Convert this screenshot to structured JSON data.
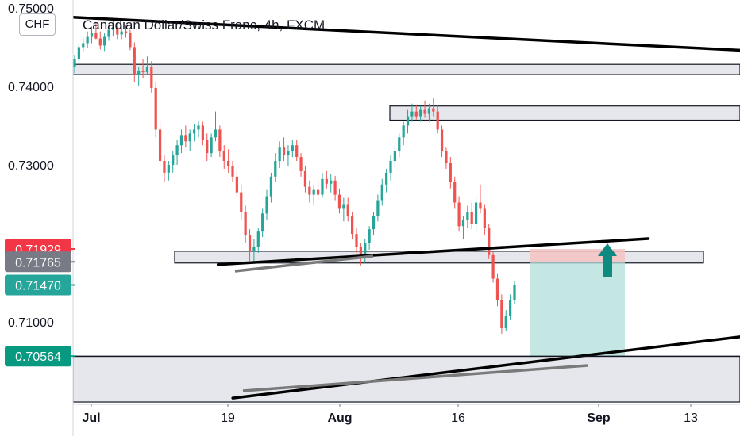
{
  "header": {
    "title": "Canadian Dollar/Swiss Franc, 4h, FXCM",
    "currency": "CHF"
  },
  "chart_data": {
    "type": "candlestick",
    "title": "Canadian Dollar/Swiss Franc, 4h, FXCM",
    "y_axis": {
      "ticks": [
        "0.75000",
        "0.74000",
        "0.73000",
        "0.71000"
      ],
      "tick_values": [
        0.75,
        0.74,
        0.73,
        0.71
      ],
      "range": [
        0.6995,
        0.751
      ]
    },
    "x_axis": {
      "ticks": [
        "Jul",
        "19",
        "Aug",
        "16",
        "Sep",
        "13"
      ]
    },
    "price_labels": [
      {
        "value": 0.71929,
        "text": "0.71929",
        "color": "#f23645"
      },
      {
        "value": 0.71765,
        "text": "0.71765",
        "color": "#787b86"
      },
      {
        "value": 0.7147,
        "text": "0.71470",
        "color": "#26a69a"
      },
      {
        "value": 0.70564,
        "text": "0.70564",
        "color": "#089981"
      }
    ],
    "zones": [
      {
        "price_top": 0.7428,
        "price_bottom": 0.7415
      },
      {
        "price_top": 0.7375,
        "price_bottom": 0.7357
      },
      {
        "price_top": 0.719,
        "price_bottom": 0.7175
      },
      {
        "price_top": 0.7056,
        "price_bottom": 0.6998
      }
    ],
    "trendlines": [
      {
        "from": [
          0,
          0.7488
        ],
        "to": [
          1,
          0.7446
        ],
        "color": "#000000"
      },
      {
        "from": [
          0.2175,
          0.7173
        ],
        "to": [
          0.8625,
          0.7206
        ],
        "color": "#000000"
      },
      {
        "from": [
          0.2395,
          0.7003
        ],
        "to": [
          1,
          0.7081
        ],
        "color": "#000000"
      }
    ],
    "position": {
      "entry": 0.71765,
      "stop": 0.71929,
      "target": 0.70564,
      "profit_color": "#b2dfdb",
      "loss_color": "#f5c2c2"
    },
    "candles": [
      [
        0.7425,
        0.744,
        0.7417,
        0.7435
      ],
      [
        0.7435,
        0.7455,
        0.743,
        0.745
      ],
      [
        0.745,
        0.7462,
        0.7444,
        0.7455
      ],
      [
        0.7455,
        0.747,
        0.7449,
        0.7463
      ],
      [
        0.7463,
        0.7476,
        0.7455,
        0.7468
      ],
      [
        0.7468,
        0.7482,
        0.746,
        0.7461
      ],
      [
        0.7461,
        0.747,
        0.7447,
        0.7452
      ],
      [
        0.7452,
        0.7468,
        0.7445,
        0.7463
      ],
      [
        0.7463,
        0.7478,
        0.7458,
        0.7472
      ],
      [
        0.7472,
        0.7484,
        0.7464,
        0.7475
      ],
      [
        0.7475,
        0.748,
        0.746,
        0.7466
      ],
      [
        0.7466,
        0.7479,
        0.746,
        0.747
      ],
      [
        0.747,
        0.7478,
        0.7462,
        0.7468
      ],
      [
        0.7468,
        0.7472,
        0.7446,
        0.745
      ],
      [
        0.745,
        0.7456,
        0.7405,
        0.7415
      ],
      [
        0.7415,
        0.7425,
        0.74,
        0.742
      ],
      [
        0.742,
        0.7435,
        0.741,
        0.7418
      ],
      [
        0.7418,
        0.7438,
        0.7415,
        0.7425
      ],
      [
        0.7425,
        0.7432,
        0.7392,
        0.7398
      ],
      [
        0.7398,
        0.7405,
        0.7335,
        0.7345
      ],
      [
        0.7345,
        0.7355,
        0.7298,
        0.7305
      ],
      [
        0.7305,
        0.7312,
        0.7278,
        0.729
      ],
      [
        0.729,
        0.7305,
        0.728,
        0.73
      ],
      [
        0.73,
        0.7318,
        0.729,
        0.7312
      ],
      [
        0.7312,
        0.7332,
        0.73,
        0.7325
      ],
      [
        0.7325,
        0.7345,
        0.7315,
        0.7338
      ],
      [
        0.7338,
        0.735,
        0.7322,
        0.733
      ],
      [
        0.733,
        0.7345,
        0.7318,
        0.734
      ],
      [
        0.734,
        0.7352,
        0.733,
        0.7345
      ],
      [
        0.7345,
        0.7356,
        0.7335,
        0.735
      ],
      [
        0.735,
        0.7355,
        0.7325,
        0.7332
      ],
      [
        0.7332,
        0.734,
        0.7305,
        0.7315
      ],
      [
        0.7315,
        0.734,
        0.731,
        0.7335
      ],
      [
        0.7335,
        0.7368,
        0.733,
        0.7345
      ],
      [
        0.7345,
        0.735,
        0.731,
        0.7318
      ],
      [
        0.7318,
        0.7325,
        0.7295,
        0.7305
      ],
      [
        0.7305,
        0.732,
        0.729,
        0.7298
      ],
      [
        0.7298,
        0.7305,
        0.7278,
        0.7285
      ],
      [
        0.7285,
        0.7292,
        0.7258,
        0.7265
      ],
      [
        0.7265,
        0.7275,
        0.723,
        0.724
      ],
      [
        0.724,
        0.7248,
        0.72,
        0.721
      ],
      [
        0.721,
        0.7218,
        0.7178,
        0.719
      ],
      [
        0.719,
        0.7205,
        0.7175,
        0.7195
      ],
      [
        0.7195,
        0.722,
        0.7188,
        0.7215
      ],
      [
        0.7215,
        0.7245,
        0.7208,
        0.7238
      ],
      [
        0.7238,
        0.7268,
        0.723,
        0.726
      ],
      [
        0.726,
        0.729,
        0.7252,
        0.7285
      ],
      [
        0.7285,
        0.7315,
        0.7278,
        0.7305
      ],
      [
        0.7305,
        0.733,
        0.7296,
        0.7322
      ],
      [
        0.7322,
        0.7335,
        0.7305,
        0.7312
      ],
      [
        0.7312,
        0.7325,
        0.7298,
        0.7318
      ],
      [
        0.7318,
        0.7332,
        0.731,
        0.7325
      ],
      [
        0.7325,
        0.7332,
        0.7305,
        0.731
      ],
      [
        0.731,
        0.7315,
        0.7285,
        0.7292
      ],
      [
        0.7292,
        0.7298,
        0.7265,
        0.7272
      ],
      [
        0.7272,
        0.728,
        0.7252,
        0.7262
      ],
      [
        0.7262,
        0.7275,
        0.7248,
        0.7268
      ],
      [
        0.7268,
        0.7282,
        0.7255,
        0.7262
      ],
      [
        0.7262,
        0.729,
        0.7258,
        0.7282
      ],
      [
        0.7282,
        0.7292,
        0.727,
        0.7276
      ],
      [
        0.7276,
        0.7288,
        0.7265,
        0.728
      ],
      [
        0.728,
        0.7286,
        0.7255,
        0.7262
      ],
      [
        0.7262,
        0.727,
        0.7238,
        0.7245
      ],
      [
        0.7245,
        0.7258,
        0.7228,
        0.725
      ],
      [
        0.725,
        0.7258,
        0.7228,
        0.7235
      ],
      [
        0.7235,
        0.724,
        0.7205,
        0.7212
      ],
      [
        0.7212,
        0.722,
        0.7188,
        0.7195
      ],
      [
        0.7195,
        0.72,
        0.7172,
        0.7182
      ],
      [
        0.7182,
        0.7205,
        0.7175,
        0.72
      ],
      [
        0.72,
        0.7222,
        0.7192,
        0.7218
      ],
      [
        0.7218,
        0.724,
        0.721,
        0.7235
      ],
      [
        0.7235,
        0.7262,
        0.7228,
        0.7255
      ],
      [
        0.7255,
        0.7282,
        0.7248,
        0.7275
      ],
      [
        0.7275,
        0.7295,
        0.7265,
        0.729
      ],
      [
        0.729,
        0.7312,
        0.728,
        0.7305
      ],
      [
        0.7305,
        0.7325,
        0.7295,
        0.7318
      ],
      [
        0.7318,
        0.734,
        0.731,
        0.7335
      ],
      [
        0.7335,
        0.7355,
        0.7325,
        0.735
      ],
      [
        0.735,
        0.737,
        0.734,
        0.7362
      ],
      [
        0.7362,
        0.7378,
        0.7355,
        0.7368
      ],
      [
        0.7368,
        0.7376,
        0.7358,
        0.7362
      ],
      [
        0.7362,
        0.7375,
        0.7355,
        0.737
      ],
      [
        0.737,
        0.7382,
        0.736,
        0.7365
      ],
      [
        0.7365,
        0.7378,
        0.7355,
        0.7372
      ],
      [
        0.7372,
        0.7385,
        0.7362,
        0.7368
      ],
      [
        0.7368,
        0.7376,
        0.734,
        0.7345
      ],
      [
        0.7345,
        0.735,
        0.731,
        0.7318
      ],
      [
        0.7318,
        0.7322,
        0.7295,
        0.7302
      ],
      [
        0.7302,
        0.731,
        0.727,
        0.7278
      ],
      [
        0.7278,
        0.7285,
        0.7245,
        0.7252
      ],
      [
        0.7252,
        0.726,
        0.7215,
        0.7222
      ],
      [
        0.7222,
        0.7235,
        0.7205,
        0.723
      ],
      [
        0.723,
        0.7248,
        0.722,
        0.724
      ],
      [
        0.724,
        0.7252,
        0.7218,
        0.7225
      ],
      [
        0.7225,
        0.726,
        0.7215,
        0.7252
      ],
      [
        0.7252,
        0.7275,
        0.7238,
        0.7245
      ],
      [
        0.7245,
        0.725,
        0.721,
        0.722
      ],
      [
        0.722,
        0.7225,
        0.718,
        0.7185
      ],
      [
        0.7185,
        0.719,
        0.715,
        0.7155
      ],
      [
        0.7155,
        0.7162,
        0.712,
        0.7128
      ],
      [
        0.7128,
        0.7135,
        0.7085,
        0.7092
      ],
      [
        0.7092,
        0.7115,
        0.7088,
        0.7108
      ],
      [
        0.7108,
        0.7135,
        0.7102,
        0.7128
      ],
      [
        0.7128,
        0.7152,
        0.7122,
        0.7147
      ]
    ]
  }
}
